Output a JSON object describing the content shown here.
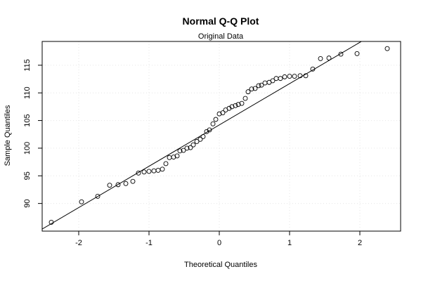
{
  "chart_data": {
    "type": "scatter",
    "title": "Normal Q-Q Plot",
    "subtitle": "Original Data",
    "xlabel": "Theoretical Quantiles",
    "ylabel": "Sample Quantiles",
    "xlim": [
      -2.52,
      2.58
    ],
    "ylim": [
      85.0,
      119.3
    ],
    "x_ticks": [
      -2,
      -1,
      0,
      1,
      2
    ],
    "x_tick_labels": [
      "-2",
      "-1",
      "0",
      "1",
      "2"
    ],
    "y_ticks": [
      90,
      95,
      100,
      105,
      110,
      115
    ],
    "y_tick_labels": [
      "90",
      "95",
      "100",
      "105",
      "110",
      "115"
    ],
    "grid": true,
    "reference_line": {
      "slope": 7.47,
      "intercept": 104.2
    },
    "points": {
      "x": [
        -2.39,
        -1.96,
        -1.73,
        -1.56,
        -1.44,
        -1.33,
        -1.23,
        -1.15,
        -1.07,
        -1.0,
        -0.93,
        -0.87,
        -0.81,
        -0.76,
        -0.71,
        -0.65,
        -0.6,
        -0.56,
        -0.51,
        -0.46,
        -0.41,
        -0.37,
        -0.32,
        -0.27,
        -0.23,
        -0.18,
        -0.14,
        -0.09,
        -0.05,
        0.0,
        0.05,
        0.09,
        0.14,
        0.18,
        0.23,
        0.27,
        0.32,
        0.37,
        0.41,
        0.46,
        0.51,
        0.56,
        0.6,
        0.65,
        0.71,
        0.76,
        0.81,
        0.87,
        0.93,
        1.0,
        1.07,
        1.15,
        1.23,
        1.33,
        1.44,
        1.56,
        1.73,
        1.96,
        2.39
      ],
      "y": [
        86.6,
        90.3,
        91.3,
        93.3,
        93.4,
        93.6,
        94.0,
        95.5,
        95.7,
        95.8,
        95.9,
        96.0,
        96.2,
        97.2,
        98.3,
        98.4,
        98.6,
        99.5,
        99.6,
        100.0,
        100.1,
        100.6,
        101.2,
        101.6,
        102.1,
        103.0,
        103.3,
        104.4,
        105.2,
        106.2,
        106.4,
        106.9,
        107.2,
        107.5,
        107.7,
        107.9,
        108.1,
        109.0,
        110.2,
        110.7,
        110.8,
        111.3,
        111.4,
        111.8,
        111.9,
        112.2,
        112.6,
        112.6,
        112.9,
        113.0,
        113.0,
        113.1,
        113.1,
        114.3,
        116.2,
        116.3,
        117.0,
        117.1,
        118.0
      ]
    }
  }
}
